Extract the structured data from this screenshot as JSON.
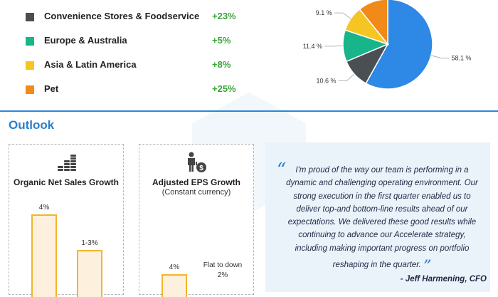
{
  "segments": [
    {
      "name": "Convenience Stores & Foodservice",
      "growth": "+23%",
      "color": "#4a4f53"
    },
    {
      "name": "Europe & Australia",
      "growth": "+5%",
      "color": "#18b58a"
    },
    {
      "name": "Asia & Latin America",
      "growth": "+8%",
      "color": "#f5c524"
    },
    {
      "name": "Pet",
      "growth": "+25%",
      "color": "#f28a1a"
    }
  ],
  "outlook": {
    "title": "Outlook",
    "organic": {
      "title": "Organic Net Sales Growth"
    },
    "eps": {
      "title": "Adjusted EPS Growth",
      "subtitle": "(Constant currency)"
    }
  },
  "quote": {
    "open_mark": "“",
    "close_mark": "”",
    "text": "I'm proud of the way our team is performing in a dynamic and challenging operating environment. Our strong execution in the first quarter enabled us to deliver top-and bottom-line results ahead of our expectations. We delivered these good results while continuing to advance our Accelerate strategy, including making important progress on portfolio reshaping in the quarter.",
    "author": "- Jeff Harmening, CFO"
  },
  "chart_data": [
    {
      "type": "pie",
      "slices": [
        {
          "label": "58.1 %",
          "value": 58.1,
          "color": "#2d88e6"
        },
        {
          "label": "10.6 %",
          "value": 10.6,
          "color": "#4a4f53"
        },
        {
          "label": "11.4 %",
          "value": 11.4,
          "color": "#18b58a"
        },
        {
          "label": "9.1 %",
          "value": 9.1,
          "color": "#f5c524"
        },
        {
          "label": "",
          "value": 10.8,
          "color": "#f28a1a"
        }
      ]
    },
    {
      "type": "bar",
      "title": "Organic Net Sales Growth",
      "categories": [
        "",
        ""
      ],
      "values": [
        4,
        2
      ],
      "data_labels": [
        "4%",
        "1-3%"
      ]
    },
    {
      "type": "bar",
      "title": "Adjusted EPS Growth",
      "subtitle": "(Constant currency)",
      "categories": [
        "",
        ""
      ],
      "values": [
        4,
        0
      ],
      "data_labels": [
        "4%",
        "Flat to down 2%"
      ]
    }
  ]
}
